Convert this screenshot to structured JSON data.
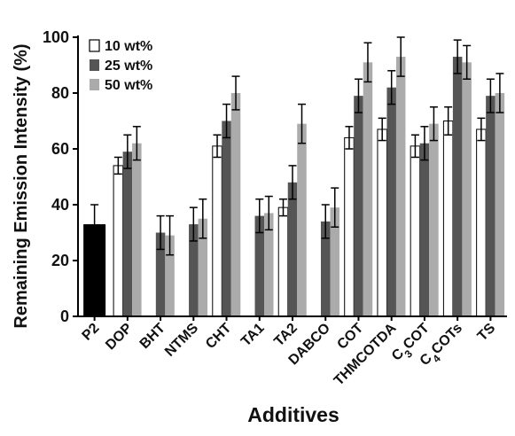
{
  "chart_data": {
    "type": "bar",
    "title": "",
    "xlabel": "Additives",
    "ylabel": "Remaining Emission Intensity (%)",
    "ylim": [
      0,
      100
    ],
    "yticks": [
      "0",
      "20",
      "40",
      "60",
      "80",
      "100"
    ],
    "grid": false,
    "legend_position": "top-left",
    "categories": [
      "P2",
      "DOP",
      "BHT",
      "NTMS",
      "CHT",
      "TA1",
      "TA2",
      "DABCO",
      "COT",
      "THMCOTDA",
      "C3COT",
      "C4COTs",
      "TS"
    ],
    "reference": {
      "category": "P2",
      "value": 33,
      "error": 7,
      "color": "#000000"
    },
    "series": [
      {
        "name": "10 wt%",
        "color": "#ffffff",
        "values": [
          null,
          54,
          null,
          null,
          61,
          null,
          39,
          null,
          64,
          67,
          61,
          70,
          67
        ],
        "errors": [
          null,
          3,
          null,
          null,
          4,
          null,
          3,
          null,
          4,
          4,
          4,
          5,
          4
        ]
      },
      {
        "name": "25 wt%",
        "color": "#555555",
        "values": [
          null,
          59,
          30,
          33,
          70,
          36,
          48,
          34,
          79,
          82,
          62,
          93,
          79
        ],
        "errors": [
          null,
          6,
          6,
          6,
          6,
          6,
          6,
          6,
          6,
          6,
          6,
          6,
          6
        ]
      },
      {
        "name": "50 wt%",
        "color": "#ababab",
        "values": [
          null,
          62,
          29,
          35,
          80,
          37,
          69,
          39,
          91,
          93,
          69,
          91,
          80
        ],
        "errors": [
          null,
          6,
          7,
          7,
          6,
          6,
          7,
          7,
          7,
          7,
          6,
          6,
          7
        ]
      }
    ]
  }
}
